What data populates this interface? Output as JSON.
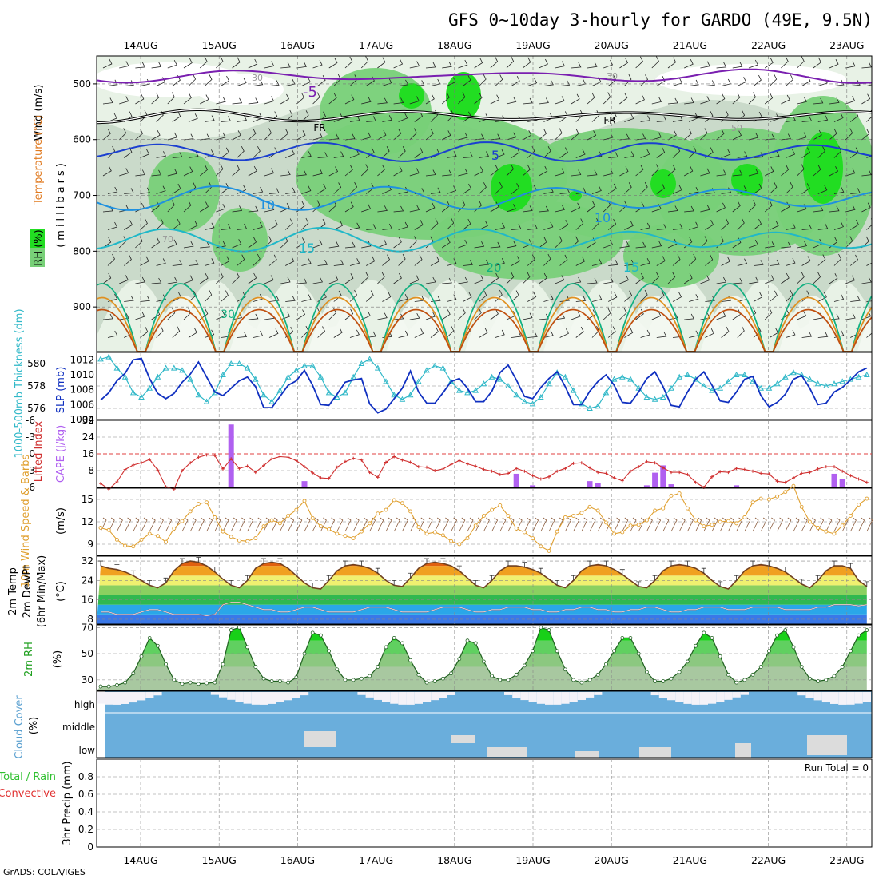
{
  "header": {
    "title": "GFS 0~10day 3-hourly for GARDO (49E, 9.5N)",
    "credit": "GrADS: COLA/IGES"
  },
  "colors": {
    "rh_light": "#e8f2e6",
    "rh_mid": "#c8d8c8",
    "rh_green": "#78d078",
    "rh_bright": "#22dd22",
    "temp_purple": "#7a1fb0",
    "temp_blue": "#1a3fd0",
    "temp_sky": "#1e90e0",
    "temp_cyan": "#20b8c8",
    "temp_teal": "#10b080",
    "temp_orange": "#e09020",
    "temp_darkorange": "#c05010",
    "slp": "#1030c0",
    "thickness": "#30b8c8",
    "cape": "#b060f0",
    "lifted": "#d03030",
    "wind10m": "#e0a030",
    "cloud": "#6aaedc",
    "precip_total": "#30c030",
    "precip_conv": "#e03030"
  },
  "dates": [
    "14AUG",
    "15AUG",
    "16AUG",
    "17AUG",
    "18AUG",
    "19AUG",
    "20AUG",
    "21AUG",
    "22AUG",
    "23AUG"
  ],
  "chart_data": [
    {
      "type": "heatmap",
      "panel": "upper-air",
      "ylabel_rh": "RH (%)",
      "ylabel_temp": "Temperature (°C)",
      "ylabel_wind": "Wind (m/s)",
      "ylabel_axis": "(millibars)",
      "yticks": [
        500,
        600,
        700,
        800,
        900
      ],
      "contour_labels": [
        "-5",
        "FR",
        "FR",
        "5",
        "10",
        "10",
        "15",
        "15",
        "20",
        "30",
        "30",
        "30",
        "70",
        "50"
      ]
    },
    {
      "type": "line",
      "panel": "slp-thickness",
      "ylabel_left": "1000-500mb Thickness (dm)",
      "ylabel_right": "SLP (mb)",
      "yticks_left": [
        576,
        578,
        580
      ],
      "yticks_right": [
        1004,
        1006,
        1008,
        1010,
        1012
      ],
      "ylim_left": [
        575,
        581
      ],
      "ylim_right": [
        1004,
        1013
      ],
      "series": [
        {
          "name": "SLP (mb)",
          "values": [
            1006.6,
            1007.6,
            1009.2,
            1010.2,
            1012,
            1012.2,
            1009.5,
            1007.5,
            1006.8,
            1007.5,
            1009,
            1010.1,
            1011.7,
            1009.7,
            1007.7,
            1007.2,
            1008.2,
            1009.2,
            1009.7,
            1008.4,
            1005.6,
            1005.6,
            1007.1,
            1008.6,
            1009.2,
            1010.6,
            1008.6,
            1006,
            1005.9,
            1007.4,
            1009,
            1009.3,
            1009.5,
            1006.1,
            1004.9,
            1005.4,
            1006.8,
            1008.2,
            1010.5,
            1007.7,
            1006.2,
            1006.2,
            1007.6,
            1009.1,
            1009.5,
            1008.2,
            1006.4,
            1006.4,
            1007.8,
            1010.3,
            1011.3,
            1009.3,
            1007.1,
            1006.8,
            1008.3,
            1009.5,
            1010.4,
            1008.4,
            1006,
            1006,
            1007.8,
            1009.1,
            1010,
            1008.6,
            1006.3,
            1006.2,
            1007.7,
            1009.5,
            1010.4,
            1008.4,
            1005.9,
            1005.7,
            1007.7,
            1009.4,
            1010.4,
            1008.6,
            1006.5,
            1006.3,
            1007.7,
            1009.4,
            1009.8,
            1007.2,
            1005.7,
            1006.3,
            1007.4,
            1009.4,
            1009.9,
            1008.2,
            1006,
            1006.2,
            1007.7,
            1008.3,
            1009.3,
            1010.4,
            1010.9
          ]
        },
        {
          "name": "1000-500mb Thickness (dm)",
          "values": [
            580.4,
            580.6,
            579.6,
            578.8,
            577.4,
            577,
            577.8,
            578.8,
            579.6,
            579.6,
            579.4,
            578.6,
            577.2,
            576.6,
            577.4,
            579,
            580,
            580,
            579.6,
            578.6,
            577.2,
            576.6,
            577.6,
            578.8,
            579.4,
            579.8,
            579.8,
            578.8,
            577.4,
            577,
            577.4,
            578.8,
            580,
            580.4,
            579.6,
            578.4,
            577.2,
            576.8,
            577.2,
            578.4,
            579.4,
            579.8,
            579.6,
            578.4,
            577.6,
            577.4,
            577.6,
            578.2,
            578.8,
            578.6,
            578,
            577.2,
            576.6,
            576.4,
            577,
            578.2,
            579.2,
            578.8,
            577.6,
            576.4,
            576,
            576.2,
            577.4,
            578.6,
            578.8,
            578.6,
            577.8,
            577,
            576.8,
            577,
            577.8,
            578.8,
            579,
            578.6,
            578,
            577.6,
            577.8,
            578.4,
            579,
            579,
            578.4,
            577.8,
            577.8,
            578.2,
            578.8,
            579.2,
            579,
            578.6,
            578.2,
            578,
            578.2,
            578.4,
            578.6,
            578.8,
            579
          ]
        }
      ]
    },
    {
      "type": "bar",
      "panel": "cape-lifted",
      "ylabel_left": "Lifted Index",
      "ylabel_right": "CAPE (J/kg)",
      "yticks_left": [
        "-6",
        "-3",
        "0",
        "3",
        "6"
      ],
      "yticks_right": [
        8,
        16,
        24,
        32
      ],
      "ylim_cape": [
        0,
        32
      ],
      "ylim_li": [
        -6,
        6
      ],
      "series": [
        {
          "name": "CAPE (J/kg)",
          "values": [
            0,
            0,
            0,
            0,
            0,
            0,
            0,
            0,
            0,
            0,
            0,
            0,
            0,
            0,
            0,
            0,
            30,
            0,
            0,
            0,
            0,
            0,
            0,
            0,
            0,
            3,
            0,
            0,
            0,
            0,
            0,
            0,
            0,
            0,
            0,
            0,
            0,
            0,
            0,
            0,
            0,
            0,
            0,
            0,
            0,
            0,
            0,
            0,
            0,
            0,
            0,
            6.5,
            0,
            1,
            0,
            0,
            0,
            0,
            0,
            0,
            3,
            2,
            0,
            0,
            0,
            0,
            0,
            1,
            7,
            10.5,
            1.5,
            0,
            0,
            0,
            0,
            0,
            0,
            0,
            1,
            0,
            0,
            0,
            0,
            0,
            0,
            0,
            0,
            0,
            0,
            0,
            6.5,
            4,
            0,
            0,
            0
          ]
        },
        {
          "name": "Lifted Index",
          "values": [
            5.3,
            6.3,
            5,
            2.8,
            2,
            1.6,
            1,
            2.9,
            5.9,
            6.3,
            3,
            1.6,
            0.6,
            0.2,
            0.3,
            2.7,
            0.9,
            2.6,
            2.2,
            3.3,
            2.1,
            0.9,
            0.5,
            0.6,
            1.2,
            2.3,
            3.4,
            4.3,
            4.4,
            2.4,
            1.4,
            0.8,
            1.1,
            3.3,
            4.2,
            1.5,
            0.5,
            1.1,
            1.5,
            2.3,
            2.4,
            3,
            2.7,
            1.9,
            1.2,
            1.8,
            2.2,
            2.8,
            3.1,
            3.7,
            3.5,
            2.6,
            3.1,
            3.9,
            4.5,
            4.1,
            3.1,
            2.6,
            1.7,
            1.6,
            2.5,
            3.3,
            3.5,
            4.3,
            4.8,
            3.1,
            2.3,
            1.4,
            1.6,
            2.5,
            3.3,
            3.3,
            3.7,
            5.1,
            6,
            4.1,
            3.2,
            3.3,
            2.6,
            2.8,
            3.1,
            3.5,
            3.6,
            4.9,
            5.1,
            4.3,
            3.5,
            3.3,
            2.7,
            2.3,
            2.3,
            3.1,
            3.9,
            4.5,
            5.1
          ]
        }
      ]
    },
    {
      "type": "line",
      "panel": "10m-wind",
      "ylabel_left": "10m Wind Speed & Barbs",
      "ylabel_right": "(m/s)",
      "yticks": [
        9,
        12,
        15
      ],
      "ylim": [
        7.5,
        16.5
      ],
      "series": [
        {
          "name": "10m Wind Speed",
          "values": [
            11.2,
            10.9,
            9.6,
            8.8,
            8.7,
            9.6,
            10.4,
            10.1,
            9.3,
            11.1,
            12.1,
            13.4,
            14.4,
            14.6,
            12.6,
            10.7,
            10,
            9.5,
            9.4,
            9.8,
            11.4,
            12.2,
            11.8,
            12.8,
            13.6,
            14.8,
            12.5,
            11.4,
            11,
            10.4,
            10.1,
            9.8,
            10.7,
            11.8,
            13.1,
            13.6,
            14.9,
            14.5,
            13.4,
            11.3,
            10.4,
            10.6,
            10.2,
            9.4,
            9,
            9.8,
            11.5,
            12.8,
            13.6,
            14.2,
            12.8,
            11.1,
            10.6,
            9.8,
            8.7,
            8.1,
            10.7,
            12.6,
            12.8,
            13.2,
            14,
            13.5,
            11.9,
            10.4,
            10.6,
            11.5,
            11.6,
            12.2,
            13.5,
            13.8,
            15.5,
            15.8,
            13.8,
            12.2,
            11.4,
            11.6,
            12,
            12.1,
            11.8,
            12.6,
            14.6,
            15.1,
            15,
            15.4,
            16,
            16.8,
            14,
            12,
            11.2,
            10.7,
            10.4,
            11.5,
            12.8,
            14.3,
            15.1
          ]
        }
      ]
    },
    {
      "type": "area",
      "panel": "2m-temp",
      "ylabel_left": "2m Temp",
      "ylabel_left2": "2m DewPt",
      "ylabel_left3": "(6hr Min/Max)",
      "ylabel_right": "(°C)",
      "yticks": [
        8,
        16,
        24,
        32
      ],
      "ylim": [
        6,
        34
      ],
      "series": [
        {
          "name": "2m Temp",
          "values": [
            30,
            29,
            28.5,
            27.5,
            26,
            24,
            22,
            21,
            23,
            28,
            31,
            32,
            31.5,
            30,
            27.5,
            24.5,
            22,
            21,
            24,
            29,
            31,
            31.5,
            31,
            29,
            26,
            23,
            21,
            20.5,
            24,
            28,
            30,
            30.5,
            30,
            29,
            27,
            24,
            22,
            21.5,
            25,
            29,
            31,
            31.5,
            31,
            30,
            28,
            25,
            22,
            21,
            24,
            28,
            30,
            30,
            29.5,
            28.5,
            27,
            24.5,
            22,
            21,
            24,
            28,
            30,
            30.5,
            30,
            28.5,
            26.5,
            24,
            21.5,
            21,
            24,
            28,
            30,
            30.5,
            30,
            29,
            27,
            24,
            21.5,
            20.5,
            24,
            28,
            30,
            30.5,
            30,
            29,
            27.5,
            25,
            22.5,
            21,
            24,
            28,
            30,
            30,
            29,
            24,
            21.5
          ]
        },
        {
          "name": "2m DewPt",
          "values": [
            11,
            11,
            10,
            10,
            10,
            11,
            12,
            12,
            11,
            10,
            10,
            10,
            10,
            9.5,
            10,
            14,
            15,
            15,
            14,
            13,
            12,
            12,
            11,
            11,
            12,
            13,
            13,
            12,
            11,
            11,
            11,
            11,
            12,
            13,
            13,
            13,
            12,
            11,
            11,
            11,
            11,
            12,
            13,
            13,
            13,
            12,
            11,
            11,
            12,
            12,
            13,
            13,
            13,
            12,
            12,
            11,
            11,
            12,
            12,
            13,
            13,
            12,
            12,
            11,
            11,
            12,
            12,
            13,
            13,
            12,
            11,
            11,
            12,
            12,
            13,
            13,
            13,
            12,
            12,
            12,
            13,
            13,
            13,
            13,
            12,
            12,
            12,
            12,
            13,
            13,
            14,
            14,
            14,
            13.5,
            14
          ]
        }
      ]
    },
    {
      "type": "area",
      "panel": "2m-rh",
      "ylabel_left": "2m RH",
      "ylabel_right": "(%)",
      "yticks": [
        30,
        50,
        70
      ],
      "ylim": [
        22,
        72
      ],
      "series": [
        {
          "name": "2m RH",
          "values": [
            25,
            25,
            26,
            28,
            35,
            48,
            62,
            56,
            42,
            30,
            27,
            28,
            27,
            27.5,
            28,
            42,
            68,
            70,
            55,
            40,
            31,
            29,
            29,
            28,
            32,
            50,
            66,
            64,
            52,
            38,
            30,
            30,
            31,
            33,
            40,
            55,
            62,
            58,
            45,
            34,
            28,
            29,
            31,
            35,
            46,
            60,
            58,
            44,
            33,
            30,
            30,
            34,
            41,
            52,
            70,
            68,
            52,
            38,
            30,
            28,
            30,
            34,
            42,
            52,
            62,
            62,
            50,
            36,
            29,
            29,
            31,
            36,
            44,
            56,
            66,
            62,
            48,
            34,
            28,
            30,
            34,
            40,
            52,
            64,
            68,
            55,
            40,
            31,
            29,
            30,
            33,
            40,
            52,
            64,
            68,
            58,
            44,
            31,
            30,
            30,
            35,
            44,
            58,
            60,
            44
          ]
        }
      ]
    },
    {
      "type": "heatmap",
      "panel": "cloud-cover",
      "ylabel_left": "Cloud Cover",
      "ylabel_right": "(%)",
      "rows": [
        "high",
        "middle",
        "low"
      ]
    },
    {
      "type": "bar",
      "panel": "precip",
      "ylabel_left": "Total / Rain",
      "ylabel_left2": "Convective",
      "ylabel_right": "3hr Precip (mm)",
      "run_total": "Run Total = 0",
      "yticks": [
        "0",
        "0.2",
        "0.4",
        "0.6",
        "0.8"
      ],
      "ylim": [
        0,
        1
      ],
      "series": [
        {
          "name": "Total / Rain",
          "values": []
        },
        {
          "name": "Convective",
          "values": []
        }
      ]
    }
  ]
}
